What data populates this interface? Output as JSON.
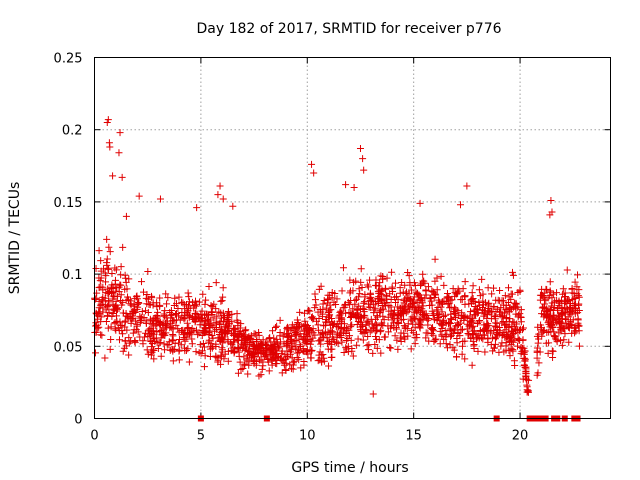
{
  "chart_data": {
    "type": "scatter",
    "title": "Day 182 of 2017, SRMTID for receiver p776",
    "xlabel": "GPS time / hours",
    "ylabel": "SRMTID / TECUs",
    "xlim": [
      0,
      24.25
    ],
    "ylim": [
      0,
      0.25
    ],
    "xticks": [
      0,
      5,
      10,
      15,
      20
    ],
    "xtick_labels": [
      "0",
      "5",
      "10",
      "15",
      "20"
    ],
    "yticks": [
      0,
      0.05,
      0.1,
      0.15,
      0.2,
      0.25
    ],
    "ytick_labels": [
      "0",
      "0.05",
      "0.1",
      "0.15",
      "0.2",
      "0.25"
    ],
    "grid": true,
    "series": [
      {
        "name": "SRMTID",
        "marker": "plus",
        "color": "#e00000",
        "seed": 182,
        "points_per_hour": 95,
        "envelope_hours": [
          0,
          0.5,
          1,
          2,
          3,
          4,
          5,
          6,
          7,
          8,
          9,
          10,
          11,
          12,
          13,
          14,
          15,
          16,
          17,
          18,
          19,
          20,
          20.5,
          21,
          22,
          22.8
        ],
        "envelope_center": [
          0.075,
          0.085,
          0.08,
          0.07,
          0.065,
          0.065,
          0.065,
          0.06,
          0.05,
          0.045,
          0.05,
          0.06,
          0.065,
          0.07,
          0.07,
          0.075,
          0.075,
          0.075,
          0.07,
          0.07,
          0.065,
          0.07,
          0.0,
          0.075,
          0.07,
          0.075
        ],
        "envelope_spread": [
          0.03,
          0.035,
          0.03,
          0.025,
          0.022,
          0.022,
          0.022,
          0.022,
          0.015,
          0.012,
          0.018,
          0.022,
          0.025,
          0.028,
          0.025,
          0.025,
          0.025,
          0.025,
          0.025,
          0.022,
          0.022,
          0.025,
          0.0,
          0.025,
          0.022,
          0.02
        ],
        "gaps_hours": [
          [
            20.4,
            20.8
          ]
        ],
        "outliers": [
          [
            0.65,
            0.207
          ],
          [
            0.7,
            0.191
          ],
          [
            0.72,
            0.188
          ],
          [
            1.2,
            0.198
          ],
          [
            1.15,
            0.184
          ],
          [
            0.85,
            0.168
          ],
          [
            1.3,
            0.167
          ],
          [
            1.5,
            0.14
          ],
          [
            2.1,
            0.154
          ],
          [
            5.9,
            0.161
          ],
          [
            5.8,
            0.155
          ],
          [
            6.05,
            0.152
          ],
          [
            6.5,
            0.147
          ],
          [
            10.2,
            0.176
          ],
          [
            10.3,
            0.17
          ],
          [
            12.5,
            0.187
          ],
          [
            12.6,
            0.18
          ],
          [
            12.65,
            0.172
          ],
          [
            12.2,
            0.16
          ],
          [
            11.8,
            0.162
          ],
          [
            17.5,
            0.161
          ],
          [
            17.2,
            0.148
          ],
          [
            15.3,
            0.149
          ],
          [
            21.45,
            0.151
          ],
          [
            21.5,
            0.143
          ],
          [
            21.4,
            0.141
          ],
          [
            13.1,
            0.017
          ],
          [
            0.6,
            0.205
          ],
          [
            3.1,
            0.152
          ],
          [
            4.8,
            0.146
          ]
        ]
      },
      {
        "name": "gaps",
        "marker": "square",
        "color": "#e00000",
        "points": [
          [
            5.0,
            0
          ],
          [
            8.1,
            0
          ],
          [
            18.9,
            0
          ],
          [
            20.45,
            0
          ],
          [
            20.6,
            0
          ],
          [
            20.75,
            0
          ],
          [
            20.9,
            0
          ],
          [
            21.05,
            0
          ],
          [
            21.2,
            0
          ],
          [
            21.6,
            0
          ],
          [
            21.75,
            0
          ],
          [
            22.1,
            0
          ],
          [
            22.55,
            0
          ],
          [
            22.7,
            0
          ]
        ]
      }
    ]
  }
}
